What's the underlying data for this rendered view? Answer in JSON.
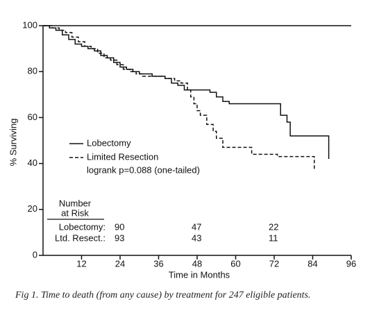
{
  "chart_data": {
    "type": "step",
    "xlabel": "Time in Months",
    "ylabel": "% Surviving",
    "xlim": [
      0,
      96
    ],
    "ylim": [
      0,
      100
    ],
    "xticks": [
      12,
      24,
      36,
      48,
      60,
      72,
      84,
      96
    ],
    "yticks": [
      0,
      20,
      40,
      60,
      80,
      100
    ],
    "series": [
      {
        "name": "Lobectomy",
        "color": "#111111",
        "linestyle": "solid",
        "x": [
          0,
          2,
          4,
          6,
          8,
          10,
          12,
          14,
          16,
          18,
          20,
          22,
          24,
          26,
          28,
          30,
          34,
          38,
          40,
          42,
          44,
          52,
          54,
          56,
          58,
          74,
          76,
          77,
          89
        ],
        "values": [
          100,
          99,
          98,
          96,
          94,
          92,
          91,
          90,
          89,
          87,
          86,
          84,
          82,
          81,
          80,
          79,
          78,
          77,
          75,
          74,
          72,
          71,
          69,
          67,
          66,
          61,
          58,
          52,
          42
        ]
      },
      {
        "name": "Limited Resection",
        "color": "#111111",
        "linestyle": "dashed",
        "x": [
          0,
          3,
          5,
          7,
          9,
          11,
          13,
          15,
          17,
          19,
          21,
          23,
          25,
          27,
          29,
          31,
          38,
          41,
          43,
          45,
          46,
          47,
          48,
          49,
          51,
          53,
          54,
          56,
          65,
          73,
          84.5
        ],
        "values": [
          100,
          99,
          98,
          97,
          95,
          93,
          91,
          90,
          88,
          86,
          85,
          83,
          81,
          80,
          79,
          78,
          77,
          76,
          75,
          72,
          69,
          66,
          63,
          61,
          57,
          54,
          51,
          47,
          44,
          43,
          37
        ]
      }
    ],
    "annotation": "logrank p=0.088 (one-tailed)",
    "risk_table": {
      "title": [
        "Number",
        "at Risk"
      ],
      "rows": [
        {
          "label": "Lobectomy:",
          "counts": [
            90,
            47,
            22
          ]
        },
        {
          "label": "Ltd. Resect.:",
          "counts": [
            93,
            43,
            11
          ]
        }
      ]
    }
  },
  "caption": "Fig 1. Time to death (from any cause) by treatment for 247 eligible patients."
}
